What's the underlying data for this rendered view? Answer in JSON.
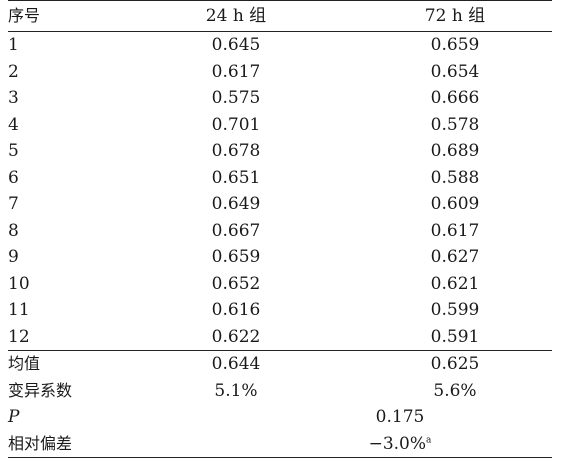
{
  "header": {
    "col_index": "序号",
    "col_24h": "24 h 组",
    "col_72h": "72 h 组"
  },
  "rows": [
    {
      "id": "1",
      "v24": "0.645",
      "v72": "0.659"
    },
    {
      "id": "2",
      "v24": "0.617",
      "v72": "0.654"
    },
    {
      "id": "3",
      "v24": "0.575",
      "v72": "0.666"
    },
    {
      "id": "4",
      "v24": "0.701",
      "v72": "0.578"
    },
    {
      "id": "5",
      "v24": "0.678",
      "v72": "0.689"
    },
    {
      "id": "6",
      "v24": "0.651",
      "v72": "0.588"
    },
    {
      "id": "7",
      "v24": "0.649",
      "v72": "0.609"
    },
    {
      "id": "8",
      "v24": "0.667",
      "v72": "0.617"
    },
    {
      "id": "9",
      "v24": "0.659",
      "v72": "0.627"
    },
    {
      "id": "10",
      "v24": "0.652",
      "v72": "0.621"
    },
    {
      "id": "11",
      "v24": "0.616",
      "v72": "0.599"
    },
    {
      "id": "12",
      "v24": "0.622",
      "v72": "0.591"
    }
  ],
  "summary": {
    "mean_label": "均值",
    "mean_24": "0.644",
    "mean_72": "0.625",
    "cv_label": "变异系数",
    "cv_24": "5.1%",
    "cv_72": "5.6%",
    "p_label": "P",
    "p_value": "0.175",
    "bias_label": "相对偏差",
    "bias_value": "−3.0%",
    "bias_footnote": "a"
  }
}
